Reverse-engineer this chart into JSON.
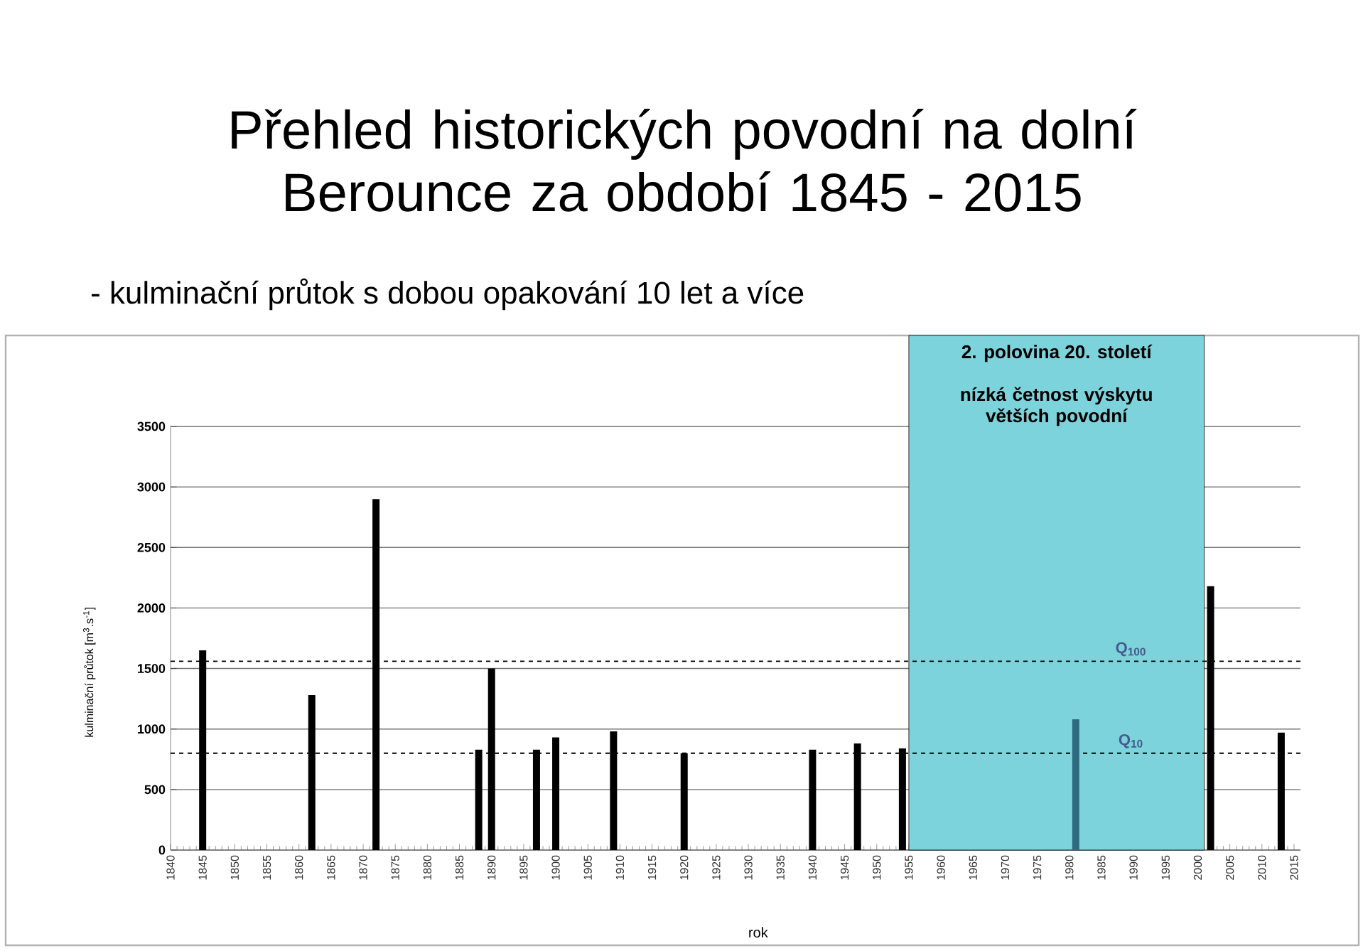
{
  "chart_data": {
    "type": "bar",
    "title": "Přehled historických povodní na dolní Berounce za období 1845 - 2015",
    "subtitle": "- kulminační průtok s dobou opakování  10 let a více",
    "xlabel": "rok",
    "ylabel": "kulminační průtok [m$^{3}$.s$^{-1}$]",
    "x": [
      1845,
      1862,
      1872,
      1888,
      1890,
      1897,
      1900,
      1909,
      1920,
      1940,
      1947,
      1954,
      1981,
      2002,
      2013
    ],
    "values": [
      1650,
      1280,
      2900,
      830,
      1500,
      830,
      930,
      980,
      800,
      830,
      880,
      840,
      1080,
      2180,
      970
    ],
    "colors": [
      "#000000",
      "#000000",
      "#000000",
      "#000000",
      "#000000",
      "#000000",
      "#000000",
      "#000000",
      "#000000",
      "#000000",
      "#000000",
      "#000000",
      "#2e6a80",
      "#000000",
      "#000000"
    ],
    "xlim": [
      1840,
      2016
    ],
    "xticks": [
      1840,
      1845,
      1850,
      1855,
      1860,
      1865,
      1870,
      1875,
      1880,
      1885,
      1890,
      1895,
      1900,
      1905,
      1910,
      1915,
      1920,
      1925,
      1930,
      1935,
      1940,
      1945,
      1950,
      1955,
      1960,
      1965,
      1970,
      1975,
      1980,
      1985,
      1990,
      1995,
      2000,
      2005,
      2010,
      2015
    ],
    "ylim": [
      0,
      3500
    ],
    "yticks": [
      0,
      500,
      1000,
      1500,
      2000,
      2500,
      3000,
      3500
    ],
    "grid": "y",
    "ref_lines": [
      {
        "axis": "y",
        "value": 1560,
        "label": "Q$_{100}$",
        "line_style": "dashed"
      },
      {
        "axis": "y",
        "value": 800,
        "label": "Q$_{10}$",
        "line_style": "dashed"
      }
    ],
    "bands": [
      {
        "axis": "x",
        "from": 1955,
        "to": 2001,
        "label": "2. polovina 20. století",
        "color": "#7dd3dc"
      }
    ],
    "annotations": [
      "nízká četnost výskytu větších povodní"
    ]
  }
}
